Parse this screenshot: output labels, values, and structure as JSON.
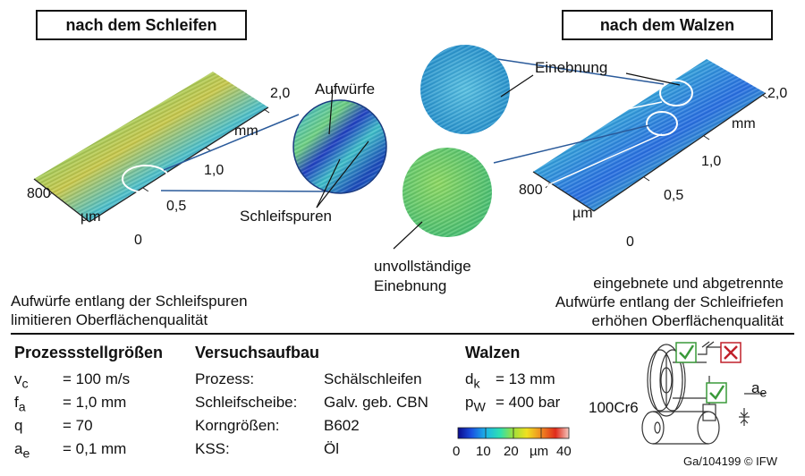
{
  "titles": {
    "left": "nach dem Schleifen",
    "right": "nach dem Walzen"
  },
  "left_plot": {
    "y_ticks": [
      "2,0",
      "1,0",
      "0,5",
      "0"
    ],
    "y_unit": "mm",
    "x_tick": "800",
    "x_unit": "µm",
    "callouts": [
      "Aufwürfe",
      "Schleifspuren"
    ]
  },
  "right_plot": {
    "y_ticks": [
      "2,0",
      "1,0",
      "0,5",
      "0"
    ],
    "y_unit": "mm",
    "x_tick": "800",
    "x_unit": "µm",
    "callouts": [
      "Einebnung",
      "unvollständige",
      "Einebnung"
    ]
  },
  "captions": {
    "left": [
      "Aufwürfe entlang der Schleifspuren",
      "limitieren Oberflächenqualität"
    ],
    "right": [
      "eingebnete und abgetrennte",
      "Aufwürfe entlang der Schleifriefen",
      "erhöhen Oberflächenqualität"
    ]
  },
  "process_params": {
    "heading": "Prozessstellgrößen",
    "rows": [
      {
        "sym": "v",
        "sub": "c",
        "value": "= 100 m/s"
      },
      {
        "sym": "f",
        "sub": "a",
        "value": "= 1,0 mm"
      },
      {
        "sym": "q",
        "sub": "",
        "value": "= 70"
      },
      {
        "sym": "a",
        "sub": "e",
        "value": "= 0,1 mm"
      }
    ]
  },
  "setup": {
    "heading": "Versuchsaufbau",
    "rows": [
      {
        "key": "Prozess:",
        "value": "Schälschleifen"
      },
      {
        "key": "Schleifscheibe:",
        "value": "Galv. geb. CBN"
      },
      {
        "key": "Korngrößen:",
        "value": "B602"
      },
      {
        "key": "KSS:",
        "value": "Öl"
      }
    ]
  },
  "rolling": {
    "heading": "Walzen",
    "rows": [
      {
        "sym": "d",
        "sub": "k",
        "value": "= 13 mm"
      },
      {
        "sym": "p",
        "sub": "W",
        "value": "= 400 bar"
      }
    ]
  },
  "colorbar": {
    "ticks": [
      "0",
      "10",
      "20",
      "µm",
      "40"
    ],
    "colors": [
      "#0a0a8c",
      "#1a4fe0",
      "#1ab4e8",
      "#2ee0b0",
      "#9ee03a",
      "#f0e020",
      "#f08a20",
      "#e02a1a",
      "#f4c8c0"
    ]
  },
  "schematic": {
    "material": "100Cr6",
    "ae_label": "a",
    "ae_sub": "e",
    "check_color": "#3a9a3a",
    "cross_color": "#c0202a"
  },
  "copyright": "Ga/104199 © IFW"
}
